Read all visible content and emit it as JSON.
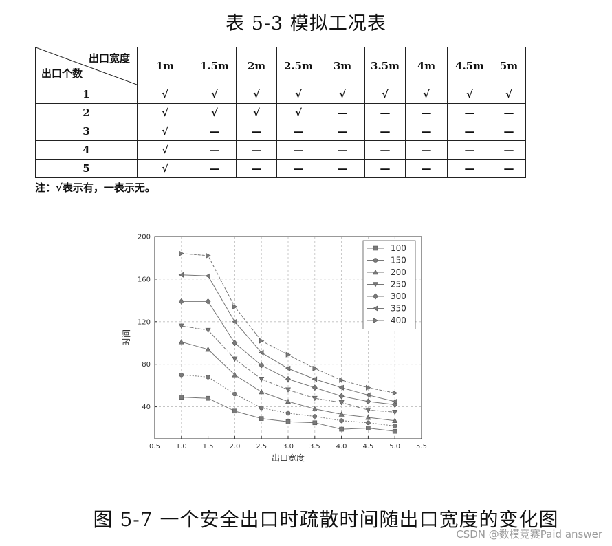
{
  "table_title": "表 5-3 模拟工况表",
  "table": {
    "header_top": "出口宽度",
    "header_bottom": "出口个数",
    "columns": [
      "1m",
      "1.5m",
      "2m",
      "2.5m",
      "3m",
      "3.5m",
      "4m",
      "4.5m",
      "5m"
    ],
    "rows": [
      {
        "label": "1",
        "cells": [
          "√",
          "√",
          "√",
          "√",
          "√",
          "√",
          "√",
          "√",
          "√"
        ]
      },
      {
        "label": "2",
        "cells": [
          "√",
          "√",
          "√",
          "√",
          "—",
          "—",
          "—",
          "—",
          "—"
        ]
      },
      {
        "label": "3",
        "cells": [
          "√",
          "—",
          "—",
          "—",
          "—",
          "—",
          "—",
          "—",
          "—"
        ]
      },
      {
        "label": "4",
        "cells": [
          "√",
          "—",
          "—",
          "—",
          "—",
          "—",
          "—",
          "—",
          "—"
        ]
      },
      {
        "label": "5",
        "cells": [
          "√",
          "—",
          "—",
          "—",
          "—",
          "—",
          "—",
          "—",
          "—"
        ]
      }
    ]
  },
  "note": "注：√表示有，一表示无。",
  "chart_data": {
    "type": "line",
    "xlabel": "出口宽度",
    "ylabel": "时间",
    "xlim": [
      0.5,
      5.5
    ],
    "ylim": [
      10,
      200
    ],
    "xticks": [
      0.5,
      1.0,
      1.5,
      2.0,
      2.5,
      3.0,
      3.5,
      4.0,
      4.5,
      5.0,
      5.5
    ],
    "xtick_labels": [
      "0.5",
      "1.0",
      "1.5",
      "2.0",
      "2.5",
      "3.0",
      "3.5",
      "4.0",
      "4.5",
      "5.0",
      "5.5"
    ],
    "yticks": [
      40,
      80,
      120,
      160,
      200
    ],
    "ytick_labels": [
      "40",
      "80",
      "120",
      "160",
      "200"
    ],
    "grid": true,
    "legend_position": "top-right",
    "x": [
      1.0,
      1.5,
      2.0,
      2.5,
      3.0,
      3.5,
      4.0,
      4.5,
      5.0
    ],
    "series": [
      {
        "name": "100",
        "marker": "square",
        "values": [
          49,
          48,
          36,
          29,
          26,
          25,
          19,
          20,
          17
        ]
      },
      {
        "name": "150",
        "marker": "circle",
        "values": [
          70,
          68,
          52,
          39,
          34,
          31,
          27,
          25,
          22
        ]
      },
      {
        "name": "200",
        "marker": "triangle-up",
        "values": [
          101,
          94,
          70,
          54,
          45,
          38,
          33,
          30,
          27
        ]
      },
      {
        "name": "250",
        "marker": "triangle-down",
        "values": [
          116,
          112,
          85,
          66,
          56,
          48,
          44,
          37,
          35
        ]
      },
      {
        "name": "300",
        "marker": "diamond",
        "values": [
          139,
          139,
          100,
          79,
          66,
          58,
          50,
          45,
          42
        ]
      },
      {
        "name": "350",
        "marker": "triangle-left",
        "values": [
          164,
          163,
          120,
          91,
          76,
          66,
          58,
          51,
          45
        ]
      },
      {
        "name": "400",
        "marker": "triangle-right",
        "values": [
          184,
          182,
          134,
          102,
          89,
          76,
          65,
          58,
          53
        ]
      }
    ]
  },
  "figure_caption": "图 5-7 一个安全出口时疏散时间随出口宽度的变化图",
  "watermark": "CSDN @数模竞赛Paid answer"
}
